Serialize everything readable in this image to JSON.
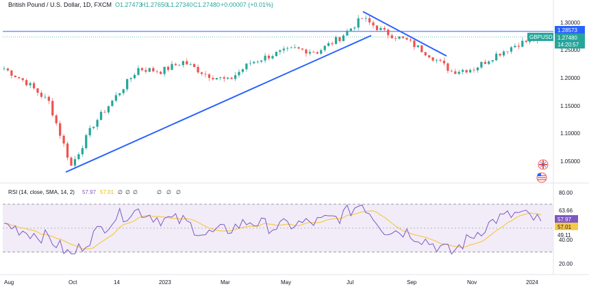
{
  "header": {
    "instrument": "British Pound / U.S. Dollar, 1D, FXCM",
    "open": "O1.27473",
    "high": "H1.27650",
    "low": "L1.27340",
    "close": "C1.27480",
    "change": "+0.00007 (+0.01%)"
  },
  "price_axis": {
    "ticks": [
      "1.30000",
      "1.25000",
      "1.20000",
      "1.15000",
      "1.10000",
      "1.05000"
    ],
    "level_label": "1.28573",
    "symbol_label": "GBPUSD",
    "last_price_label": "1.27480",
    "countdown_label": "14:20:57"
  },
  "rsi_panel": {
    "title": "RSI (14, close, SMA, 14, 2)",
    "value_rsi": "57.97",
    "value_sma": "57.01",
    "empty_markers": [
      "∅",
      "∅",
      "∅",
      "∅",
      "∅",
      "∅"
    ],
    "axis_ticks": [
      "80.00",
      "63.66",
      "49.11",
      "40.00",
      "20.00"
    ],
    "rsi_label": "57.97",
    "sma_label": "57.01"
  },
  "time_axis": {
    "ticks": [
      "Aug",
      "Oct",
      "14",
      "2023",
      "Mar",
      "May",
      "Jul",
      "Sep",
      "Nov",
      "2024"
    ]
  },
  "colors": {
    "up": "#26a69a",
    "down": "#ef5350",
    "trendline": "#2962ff",
    "level_line": "#2962ff",
    "rsi": "#7e57c2",
    "rsi_sma": "#f7c948",
    "rsi_band": "#ede7f6",
    "axis_text": "#131722"
  },
  "icons": {
    "flag_icons": [
      "uk-flag-icon",
      "us-flag-icon"
    ]
  },
  "chart_data": {
    "type": "candlestick",
    "series": [
      {
        "name": "GBPUSD",
        "x": [
          "2022-07-25",
          "2022-08-15",
          "2022-09-05",
          "2022-09-26",
          "2022-10-17",
          "2022-11-07",
          "2022-11-28",
          "2022-12-19",
          "2023-01-16",
          "2023-02-13",
          "2023-03-06",
          "2023-03-27",
          "2023-04-17",
          "2023-05-08",
          "2023-05-29",
          "2023-06-19",
          "2023-07-10",
          "2023-07-31",
          "2023-08-21",
          "2023-09-11",
          "2023-10-02",
          "2023-10-23",
          "2023-11-13",
          "2023-12-04",
          "2023-12-25"
        ],
        "close": [
          1.22,
          1.195,
          1.16,
          1.045,
          1.12,
          1.17,
          1.22,
          1.215,
          1.232,
          1.21,
          1.198,
          1.23,
          1.245,
          1.255,
          1.25,
          1.275,
          1.31,
          1.285,
          1.27,
          1.245,
          1.215,
          1.22,
          1.245,
          1.265,
          1.2748
        ]
      }
    ],
    "price_ylim": [
      1.02,
      1.32
    ],
    "rsi": {
      "name": "RSI",
      "values": [
        55,
        48,
        42,
        25,
        45,
        62,
        68,
        60,
        58,
        45,
        50,
        58,
        52,
        55,
        57,
        62,
        75,
        50,
        48,
        38,
        28,
        45,
        60,
        65,
        57.97
      ],
      "sma_last": 57.01,
      "ylim": [
        15,
        85
      ],
      "band": [
        30,
        70
      ]
    },
    "trendlines": [
      {
        "from": [
          "2022-09-26",
          1.03
        ],
        "to": [
          "2023-07-17",
          1.27
        ]
      },
      {
        "from": [
          "2023-07-14",
          1.32
        ],
        "to": [
          "2023-10-09",
          1.24
        ]
      }
    ],
    "horizontal_level": 1.28573,
    "grid": false
  }
}
